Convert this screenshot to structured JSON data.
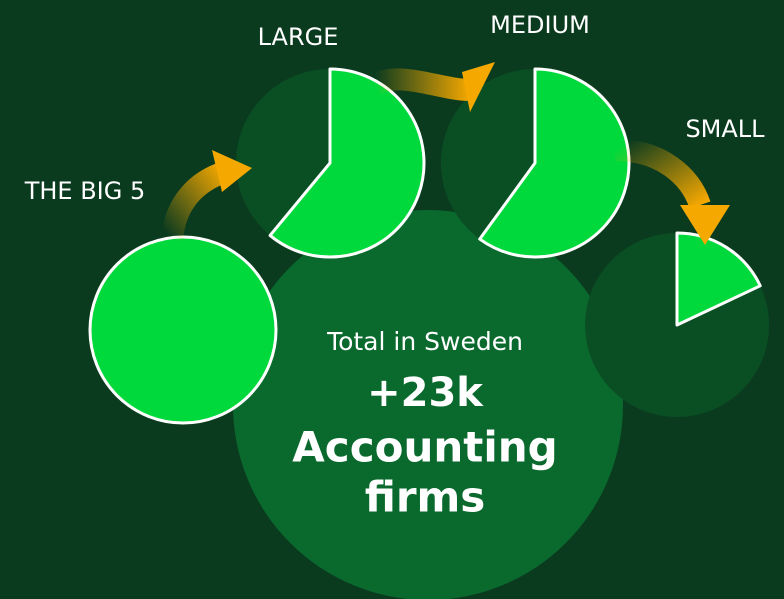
{
  "nodes": [
    {
      "label": "THE BIG 5",
      "share": 100
    },
    {
      "label": "LARGE",
      "share": 61
    },
    {
      "label": "MEDIUM",
      "share": 60
    },
    {
      "label": "SMALL",
      "share": 18
    }
  ],
  "center": {
    "subtitle": "Total in Sweden",
    "value": "+23k",
    "line1": "Accounting",
    "line2": "firms"
  }
}
